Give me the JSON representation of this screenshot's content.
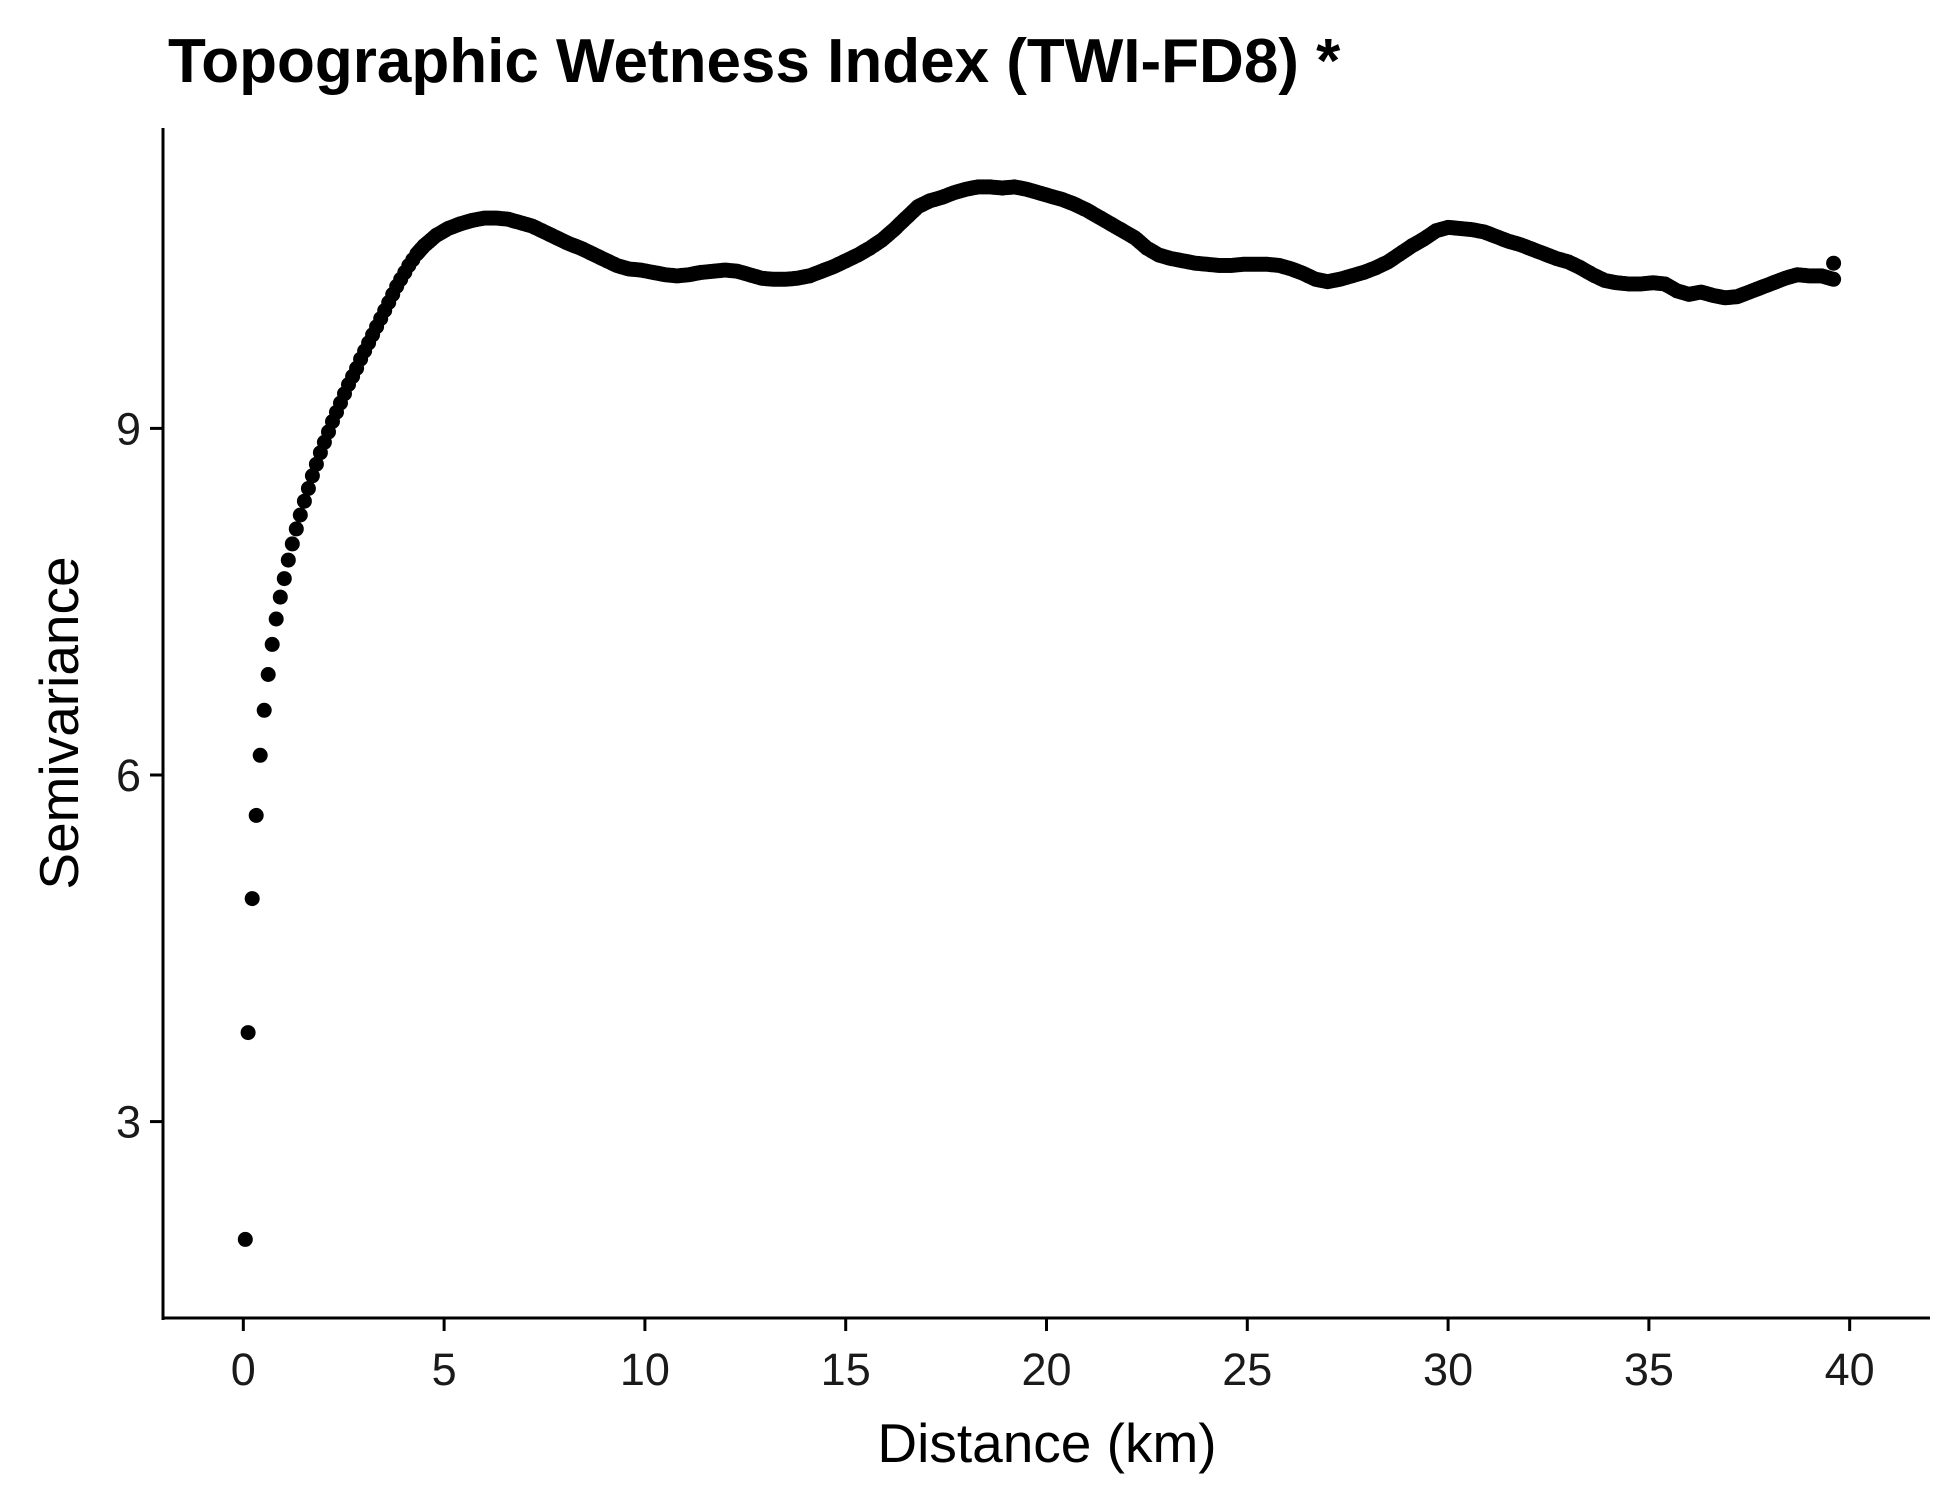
{
  "chart_data": {
    "type": "scatter",
    "title": "Topographic Wetness Index (TWI-FD8) *",
    "xlabel": "Distance (km)",
    "ylabel": "Semivariance",
    "xlim": [
      -2,
      42
    ],
    "ylim": [
      1.3,
      11.6
    ],
    "xticks": [
      0,
      5,
      10,
      15,
      20,
      25,
      30,
      35,
      40
    ],
    "yticks": [
      3,
      6,
      9
    ],
    "grid": false,
    "legend": "none",
    "point_color": "#000000",
    "points": [
      [
        0.05,
        1.98
      ],
      [
        0.12,
        3.77
      ],
      [
        0.22,
        4.93
      ],
      [
        0.32,
        5.65
      ],
      [
        0.42,
        6.17
      ],
      [
        0.52,
        6.56
      ],
      [
        0.62,
        6.87
      ],
      [
        0.72,
        7.13
      ],
      [
        0.82,
        7.35
      ],
      [
        0.92,
        7.54
      ],
      [
        1.02,
        7.7
      ],
      [
        1.12,
        7.86
      ],
      [
        1.22,
        8.0
      ],
      [
        1.32,
        8.13
      ],
      [
        1.42,
        8.25
      ],
      [
        1.52,
        8.37
      ],
      [
        1.62,
        8.48
      ],
      [
        1.72,
        8.59
      ],
      [
        1.82,
        8.69
      ],
      [
        1.92,
        8.79
      ],
      [
        2.02,
        8.88
      ],
      [
        2.12,
        8.97
      ],
      [
        2.22,
        9.06
      ],
      [
        2.32,
        9.14
      ],
      [
        2.42,
        9.22
      ],
      [
        2.52,
        9.3
      ],
      [
        2.62,
        9.38
      ],
      [
        2.72,
        9.45
      ],
      [
        2.82,
        9.52
      ],
      [
        2.92,
        9.6
      ],
      [
        3.02,
        9.67
      ],
      [
        3.12,
        9.74
      ],
      [
        3.22,
        9.81
      ],
      [
        3.32,
        9.88
      ],
      [
        3.42,
        9.95
      ],
      [
        3.52,
        10.02
      ],
      [
        3.62,
        10.09
      ],
      [
        3.72,
        10.16
      ],
      [
        3.82,
        10.23
      ],
      [
        3.92,
        10.29
      ],
      [
        4.02,
        10.35
      ],
      [
        4.12,
        10.41
      ],
      [
        4.22,
        10.46
      ],
      [
        4.32,
        10.51
      ],
      [
        4.5,
        10.58
      ],
      [
        4.8,
        10.67
      ],
      [
        5.1,
        10.73
      ],
      [
        5.4,
        10.77
      ],
      [
        5.7,
        10.8
      ],
      [
        6.0,
        10.82
      ],
      [
        6.3,
        10.82
      ],
      [
        6.6,
        10.81
      ],
      [
        6.9,
        10.78
      ],
      [
        7.2,
        10.75
      ],
      [
        7.5,
        10.7
      ],
      [
        7.8,
        10.65
      ],
      [
        8.1,
        10.6
      ],
      [
        8.4,
        10.56
      ],
      [
        8.7,
        10.51
      ],
      [
        9.0,
        10.46
      ],
      [
        9.3,
        10.41
      ],
      [
        9.6,
        10.38
      ],
      [
        9.9,
        10.37
      ],
      [
        10.2,
        10.35
      ],
      [
        10.5,
        10.33
      ],
      [
        10.8,
        10.32
      ],
      [
        11.1,
        10.33
      ],
      [
        11.4,
        10.35
      ],
      [
        11.7,
        10.36
      ],
      [
        12.0,
        10.37
      ],
      [
        12.3,
        10.36
      ],
      [
        12.6,
        10.33
      ],
      [
        12.9,
        10.3
      ],
      [
        13.2,
        10.29
      ],
      [
        13.5,
        10.29
      ],
      [
        13.8,
        10.3
      ],
      [
        14.1,
        10.32
      ],
      [
        14.4,
        10.36
      ],
      [
        14.7,
        10.4
      ],
      [
        15.0,
        10.45
      ],
      [
        15.3,
        10.5
      ],
      [
        15.6,
        10.56
      ],
      [
        15.9,
        10.63
      ],
      [
        16.2,
        10.72
      ],
      [
        16.5,
        10.82
      ],
      [
        16.8,
        10.92
      ],
      [
        17.1,
        10.97
      ],
      [
        17.4,
        11.0
      ],
      [
        17.7,
        11.04
      ],
      [
        18.0,
        11.07
      ],
      [
        18.3,
        11.09
      ],
      [
        18.6,
        11.09
      ],
      [
        18.9,
        11.08
      ],
      [
        19.2,
        11.09
      ],
      [
        19.5,
        11.07
      ],
      [
        19.8,
        11.04
      ],
      [
        20.1,
        11.01
      ],
      [
        20.4,
        10.98
      ],
      [
        20.7,
        10.94
      ],
      [
        21.0,
        10.89
      ],
      [
        21.3,
        10.83
      ],
      [
        21.6,
        10.77
      ],
      [
        21.9,
        10.71
      ],
      [
        22.2,
        10.65
      ],
      [
        22.5,
        10.56
      ],
      [
        22.8,
        10.5
      ],
      [
        23.1,
        10.47
      ],
      [
        23.4,
        10.45
      ],
      [
        23.7,
        10.43
      ],
      [
        24.0,
        10.42
      ],
      [
        24.3,
        10.41
      ],
      [
        24.6,
        10.41
      ],
      [
        24.9,
        10.42
      ],
      [
        25.2,
        10.42
      ],
      [
        25.5,
        10.42
      ],
      [
        25.8,
        10.41
      ],
      [
        26.1,
        10.38
      ],
      [
        26.4,
        10.34
      ],
      [
        26.7,
        10.29
      ],
      [
        27.0,
        10.27
      ],
      [
        27.3,
        10.29
      ],
      [
        27.6,
        10.32
      ],
      [
        27.9,
        10.35
      ],
      [
        28.2,
        10.39
      ],
      [
        28.5,
        10.44
      ],
      [
        28.8,
        10.51
      ],
      [
        29.1,
        10.58
      ],
      [
        29.4,
        10.64
      ],
      [
        29.7,
        10.71
      ],
      [
        30.0,
        10.74
      ],
      [
        30.3,
        10.73
      ],
      [
        30.6,
        10.72
      ],
      [
        30.9,
        10.7
      ],
      [
        31.2,
        10.66
      ],
      [
        31.5,
        10.62
      ],
      [
        31.8,
        10.59
      ],
      [
        32.1,
        10.55
      ],
      [
        32.4,
        10.51
      ],
      [
        32.7,
        10.47
      ],
      [
        33.0,
        10.44
      ],
      [
        33.3,
        10.39
      ],
      [
        33.6,
        10.33
      ],
      [
        33.9,
        10.28
      ],
      [
        34.2,
        10.26
      ],
      [
        34.5,
        10.25
      ],
      [
        34.8,
        10.25
      ],
      [
        35.1,
        10.26
      ],
      [
        35.4,
        10.25
      ],
      [
        35.7,
        10.19
      ],
      [
        36.0,
        10.16
      ],
      [
        36.3,
        10.18
      ],
      [
        36.6,
        10.15
      ],
      [
        36.9,
        10.13
      ],
      [
        37.2,
        10.14
      ],
      [
        37.5,
        10.18
      ],
      [
        37.8,
        10.22
      ],
      [
        38.1,
        10.26
      ],
      [
        38.4,
        10.3
      ],
      [
        38.7,
        10.33
      ],
      [
        39.0,
        10.32
      ],
      [
        39.3,
        10.32
      ],
      [
        39.6,
        10.29
      ],
      [
        39.6,
        10.43
      ]
    ]
  }
}
